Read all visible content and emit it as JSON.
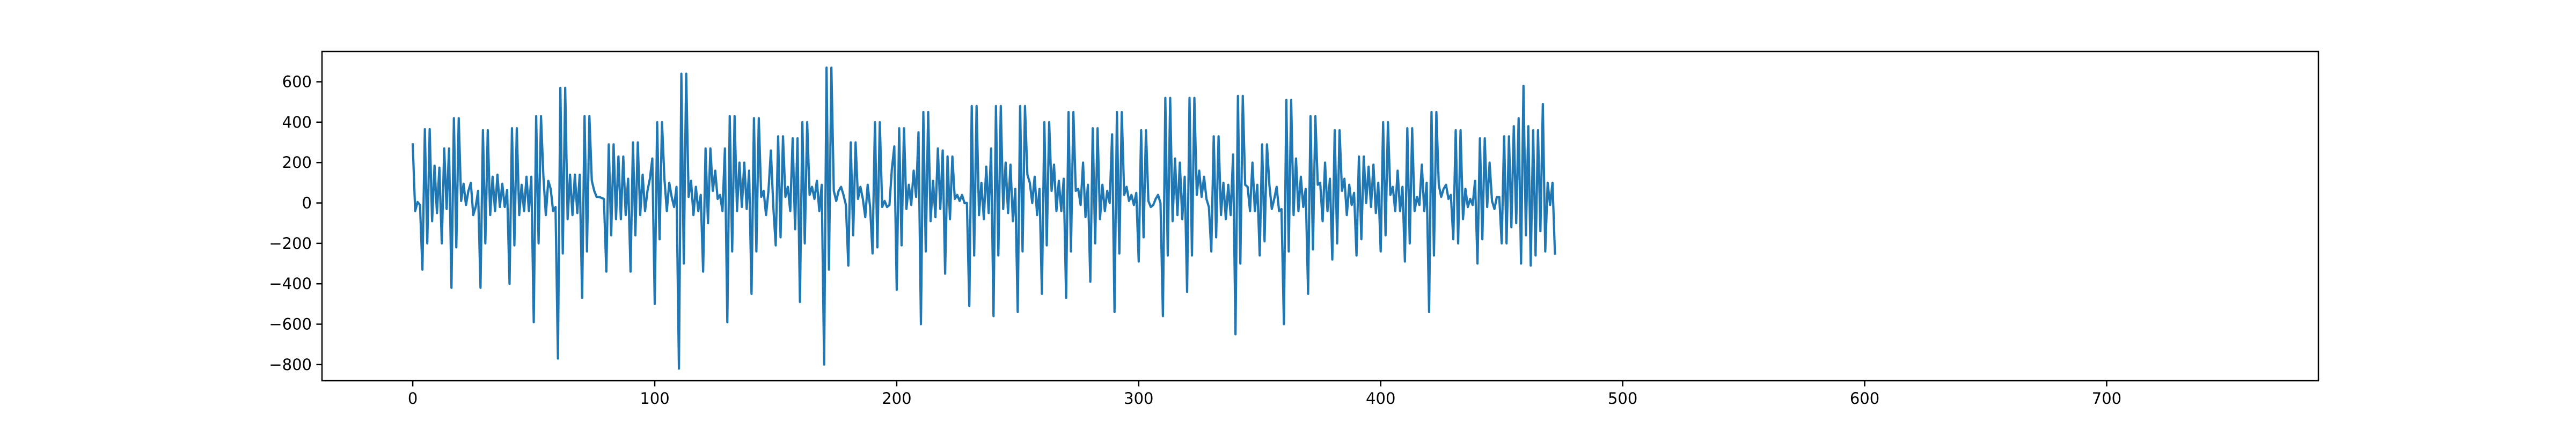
{
  "chart_data": {
    "type": "line",
    "title": "",
    "xlabel": "",
    "ylabel": "",
    "xlim": [
      -37.5,
      787.5
    ],
    "ylim": [
      -880,
      750
    ],
    "xticks": [
      0,
      100,
      200,
      300,
      400,
      500,
      600,
      700
    ],
    "yticks": [
      -800,
      -600,
      -400,
      -200,
      0,
      200,
      400,
      600
    ],
    "grid": false,
    "legend": "none",
    "colors": {
      "line": "#1f77b4",
      "axes": "#000000",
      "background": "#ffffff"
    },
    "series": [
      {
        "x_start": 0,
        "x_step": 1,
        "values": [
          290,
          -40,
          5,
          -10,
          -330,
          365,
          -200,
          365,
          -90,
          185,
          -50,
          175,
          -200,
          270,
          -30,
          270,
          -420,
          420,
          -220,
          420,
          10,
          95,
          -10,
          60,
          100,
          -60,
          -20,
          60,
          -420,
          360,
          -200,
          360,
          -60,
          130,
          -40,
          140,
          -20,
          95,
          -20,
          65,
          -400,
          370,
          -210,
          370,
          -60,
          90,
          -40,
          130,
          -40,
          130,
          -590,
          430,
          -200,
          430,
          130,
          -60,
          110,
          70,
          -40,
          -20,
          -770,
          570,
          -250,
          570,
          -80,
          140,
          -60,
          140,
          -50,
          140,
          -470,
          430,
          -240,
          430,
          110,
          60,
          30,
          30,
          25,
          20,
          -340,
          290,
          -160,
          290,
          -80,
          230,
          -80,
          230,
          -60,
          120,
          -340,
          300,
          -160,
          300,
          -60,
          140,
          -40,
          60,
          120,
          220,
          -500,
          400,
          -180,
          400,
          120,
          -40,
          100,
          30,
          -20,
          80,
          -820,
          640,
          -300,
          640,
          30,
          110,
          -60,
          80,
          -40,
          40,
          -340,
          270,
          -100,
          270,
          60,
          160,
          20,
          40,
          -40,
          270,
          -590,
          430,
          -240,
          430,
          -40,
          200,
          -20,
          200,
          -30,
          160,
          -450,
          420,
          -240,
          420,
          30,
          60,
          -60,
          60,
          260,
          -20,
          -210,
          330,
          -170,
          330,
          30,
          80,
          -40,
          320,
          -130,
          320,
          -490,
          400,
          -200,
          400,
          40,
          80,
          20,
          110,
          -40,
          90,
          -800,
          670,
          -330,
          670,
          60,
          10,
          60,
          80,
          40,
          -10,
          -310,
          300,
          -160,
          300,
          20,
          80,
          20,
          -70,
          90,
          -20,
          -250,
          400,
          -220,
          400,
          -20,
          10,
          -20,
          -10,
          170,
          280,
          -430,
          370,
          -210,
          370,
          -30,
          90,
          -10,
          160,
          30,
          350,
          -600,
          450,
          -240,
          450,
          -90,
          110,
          -70,
          270,
          -30,
          260,
          -350,
          230,
          -80,
          230,
          20,
          40,
          10,
          40,
          0,
          0,
          -510,
          480,
          -260,
          480,
          -60,
          100,
          -80,
          180,
          -50,
          270,
          -560,
          480,
          -260,
          480,
          -30,
          200,
          -50,
          190,
          -90,
          70,
          -540,
          480,
          -240,
          480,
          140,
          100,
          0,
          130,
          -60,
          70,
          -450,
          400,
          -210,
          400,
          60,
          190,
          -40,
          110,
          -40,
          120,
          -470,
          450,
          -240,
          450,
          60,
          70,
          -10,
          200,
          -70,
          90,
          -390,
          370,
          -200,
          370,
          -80,
          90,
          -40,
          60,
          0,
          340,
          -540,
          450,
          -250,
          450,
          40,
          80,
          10,
          40,
          -10,
          50,
          -290,
          360,
          -170,
          360,
          10,
          -20,
          -10,
          20,
          40,
          0,
          -560,
          520,
          -260,
          520,
          -90,
          220,
          -60,
          200,
          -80,
          130,
          -440,
          520,
          -260,
          520,
          40,
          160,
          30,
          130,
          20,
          -20,
          -240,
          330,
          -170,
          330,
          -60,
          100,
          -80,
          90,
          -60,
          240,
          -650,
          530,
          -300,
          530,
          90,
          80,
          -40,
          200,
          -40,
          90,
          -260,
          290,
          -190,
          290,
          90,
          -30,
          20,
          80,
          -40,
          -30,
          -600,
          510,
          -240,
          510,
          -60,
          220,
          -40,
          130,
          -20,
          70,
          -450,
          430,
          -230,
          430,
          90,
          100,
          -90,
          200,
          -40,
          120,
          -280,
          360,
          -200,
          360,
          60,
          120,
          -60,
          90,
          -10,
          50,
          -260,
          230,
          -180,
          230,
          0,
          180,
          -20,
          190,
          -50,
          100,
          -240,
          400,
          -160,
          400,
          40,
          80,
          -40,
          160,
          -40,
          80,
          -290,
          370,
          -200,
          370,
          -40,
          30,
          -10,
          190,
          -40,
          100,
          -540,
          450,
          -260,
          450,
          90,
          30,
          70,
          90,
          20,
          40,
          -180,
          360,
          -200,
          360,
          -80,
          70,
          -20,
          20,
          -10,
          110,
          -300,
          320,
          -180,
          320,
          -20,
          200,
          10,
          -30,
          30,
          30,
          -200,
          330,
          -200,
          330,
          -120,
          380,
          -100,
          420,
          -300,
          580,
          -160,
          380,
          -310,
          360,
          -260,
          360,
          -140,
          490,
          -240,
          100,
          -10,
          100,
          -250
        ]
      }
    ]
  }
}
